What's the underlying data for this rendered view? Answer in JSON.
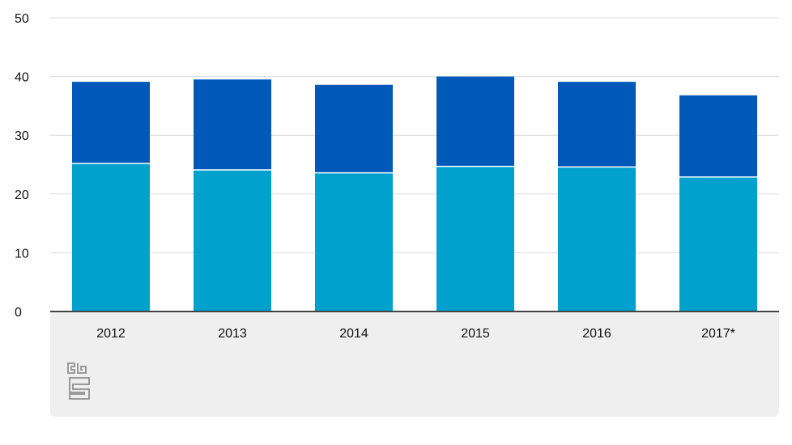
{
  "chart_data": {
    "type": "bar",
    "stacked": true,
    "categories": [
      "2012",
      "2013",
      "2014",
      "2015",
      "2016",
      "2017*"
    ],
    "series": [
      {
        "values": [
          25.2,
          24.1,
          23.6,
          24.7,
          24.6,
          22.9
        ],
        "color": "#00a1cd"
      },
      {
        "values": [
          13.9,
          15.4,
          15.0,
          15.3,
          14.5,
          13.9
        ],
        "color": "#0058b8"
      }
    ],
    "yticks": [
      0,
      10,
      20,
      30,
      40,
      50
    ],
    "ylim": [
      0,
      50
    ],
    "grid": true,
    "legend": "none"
  },
  "logo": {
    "name": "cbs-logo-icon",
    "text": "cbs"
  },
  "colors": {
    "background": "#ffffff",
    "gridline": "#d9d9d9",
    "axis": "#444444",
    "panel": "#efefef",
    "logo": "#9a9a9a"
  }
}
